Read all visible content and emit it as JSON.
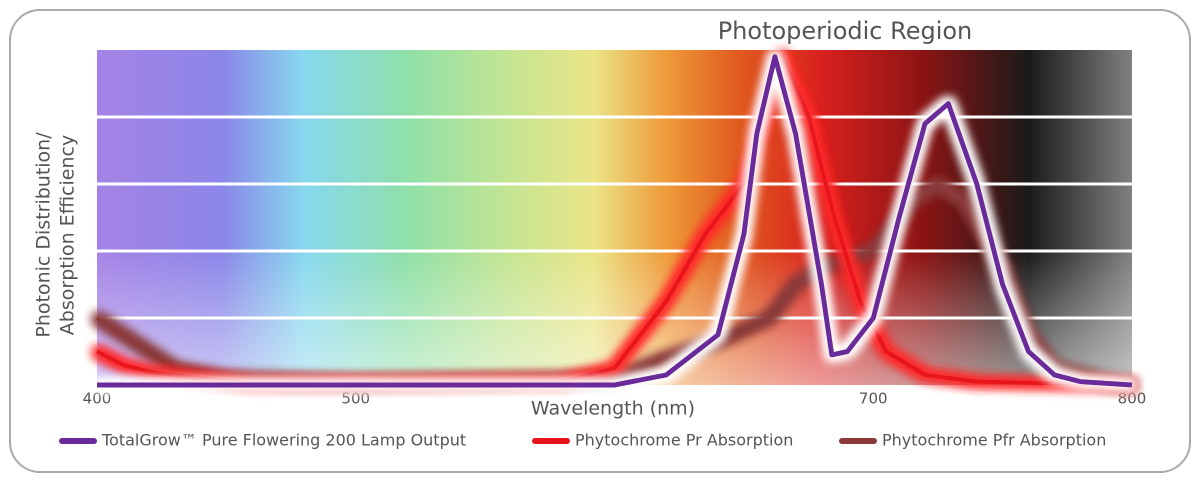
{
  "chart_data": {
    "type": "line",
    "title": "Photoperiodic Region",
    "ylabel": [
      "Photonic Distribution/",
      "Absorption Efficiency"
    ],
    "xlabel": "Wavelength (nm)",
    "xlim": [
      400,
      800
    ],
    "xticks": [
      400,
      500,
      700,
      800
    ],
    "ylim": [
      0,
      1
    ],
    "ygrid": [
      0.2,
      0.4,
      0.6,
      0.8
    ],
    "grid": true,
    "legend": "bottom",
    "series": [
      {
        "name": "Phytochrome Pfr Absorption",
        "color": "#8b3a3a",
        "glow": "#8b3a3a",
        "x": [
          400,
          410,
          420,
          430,
          450,
          500,
          600,
          620,
          640,
          660,
          670,
          680,
          690,
          700,
          715,
          725,
          735,
          750,
          760,
          770,
          790,
          800
        ],
        "values": [
          0.2,
          0.15,
          0.1,
          0.05,
          0.02,
          0.01,
          0.02,
          0.08,
          0.13,
          0.2,
          0.3,
          0.35,
          0.38,
          0.4,
          0.55,
          0.6,
          0.55,
          0.35,
          0.15,
          0.05,
          0.01,
          0
        ]
      },
      {
        "name": "Phytochrome Pr Absorption",
        "color": "#e8121a",
        "glow": "#ff2a2a",
        "x": [
          400,
          410,
          420,
          440,
          460,
          580,
          600,
          620,
          635,
          645,
          650,
          660,
          665,
          675,
          685,
          695,
          705,
          720,
          740,
          800
        ],
        "values": [
          0.1,
          0.06,
          0.04,
          0.02,
          0.005,
          0.01,
          0.05,
          0.25,
          0.45,
          0.55,
          0.6,
          0.85,
          0.98,
          0.8,
          0.5,
          0.25,
          0.1,
          0.03,
          0.01,
          0
        ]
      },
      {
        "name": "TotalGrow™ Pure Flowering 200 Lamp Output",
        "color": "#6a2a9a",
        "glow": "#ffffff",
        "x": [
          400,
          600,
          620,
          640,
          650,
          655,
          662,
          670,
          680,
          684,
          690,
          700,
          710,
          720,
          729,
          740,
          750,
          760,
          770,
          780,
          800
        ],
        "values": [
          0,
          0,
          0.03,
          0.15,
          0.45,
          0.75,
          0.98,
          0.75,
          0.3,
          0.09,
          0.1,
          0.2,
          0.5,
          0.78,
          0.84,
          0.6,
          0.3,
          0.1,
          0.03,
          0.01,
          0
        ]
      }
    ]
  }
}
